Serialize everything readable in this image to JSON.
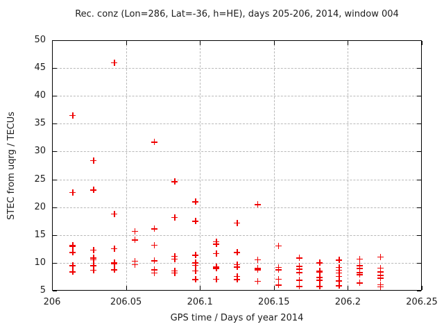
{
  "chart_data": {
    "type": "scatter",
    "title": "Rec. conz (Lon=286, Lat=-36, h=HE), days 205-206, 2014, window 004",
    "xlabel": "GPS time / Days of year 2014",
    "ylabel": "STEC from uqrg / TECUs",
    "xlim": [
      206,
      206.25
    ],
    "ylim": [
      5,
      50
    ],
    "x_ticks": [
      206,
      206.05,
      206.1,
      206.15,
      206.2,
      206.25
    ],
    "x_tick_labels": [
      "206",
      "206.05",
      "206.1",
      "206.15",
      "206.2",
      "206.25"
    ],
    "y_ticks": [
      5,
      10,
      15,
      20,
      25,
      30,
      35,
      40,
      45,
      50
    ],
    "y_tick_labels": [
      "5",
      "10",
      "15",
      "20",
      "25",
      "30",
      "35",
      "40",
      "45",
      "50"
    ],
    "grid": true,
    "legend": "none",
    "marker": "plus",
    "marker_color": "#ef0000",
    "grid_color": "#b8b8b8",
    "axis_color": "#000000",
    "text_color": "#1c1c1c",
    "background": "#ffffff",
    "points": [
      [
        206.014,
        36.5
      ],
      [
        206.014,
        22.7
      ],
      [
        206.014,
        13.2
      ],
      [
        206.014,
        13.0
      ],
      [
        206.014,
        11.9
      ],
      [
        206.014,
        9.5
      ],
      [
        206.014,
        8.4
      ],
      [
        206.028,
        28.4
      ],
      [
        206.028,
        23.1
      ],
      [
        206.028,
        12.3
      ],
      [
        206.028,
        10.9
      ],
      [
        206.028,
        10.6
      ],
      [
        206.028,
        9.5
      ],
      [
        206.028,
        8.7
      ],
      [
        206.042,
        46.0
      ],
      [
        206.042,
        18.8
      ],
      [
        206.042,
        12.6
      ],
      [
        206.042,
        10.1
      ],
      [
        206.042,
        9.9
      ],
      [
        206.042,
        8.8
      ],
      [
        206.056,
        15.7
      ],
      [
        206.056,
        14.1
      ],
      [
        206.056,
        10.3
      ],
      [
        206.056,
        9.7
      ],
      [
        206.069,
        31.7
      ],
      [
        206.069,
        16.1
      ],
      [
        206.069,
        13.2
      ],
      [
        206.069,
        10.4
      ],
      [
        206.069,
        8.8
      ],
      [
        206.069,
        8.2
      ],
      [
        206.083,
        24.6
      ],
      [
        206.083,
        18.2
      ],
      [
        206.083,
        11.2
      ],
      [
        206.083,
        10.7
      ],
      [
        206.083,
        8.6
      ],
      [
        206.083,
        8.2
      ],
      [
        206.097,
        21.0
      ],
      [
        206.097,
        17.5
      ],
      [
        206.097,
        11.4
      ],
      [
        206.097,
        10.0
      ],
      [
        206.097,
        9.6
      ],
      [
        206.097,
        8.6
      ],
      [
        206.097,
        7.0
      ],
      [
        206.111,
        13.8
      ],
      [
        206.111,
        13.4
      ],
      [
        206.111,
        11.7
      ],
      [
        206.111,
        9.3
      ],
      [
        206.111,
        9.0
      ],
      [
        206.111,
        7.1
      ],
      [
        206.125,
        17.2
      ],
      [
        206.125,
        11.9
      ],
      [
        206.125,
        9.7
      ],
      [
        206.125,
        9.3
      ],
      [
        206.125,
        7.6
      ],
      [
        206.125,
        7.0
      ],
      [
        206.139,
        20.5
      ],
      [
        206.139,
        10.6
      ],
      [
        206.139,
        9.0
      ],
      [
        206.139,
        8.8
      ],
      [
        206.139,
        6.7
      ],
      [
        206.153,
        13.1
      ],
      [
        206.153,
        9.2
      ],
      [
        206.153,
        8.8
      ],
      [
        206.153,
        7.1
      ],
      [
        206.153,
        6.0
      ],
      [
        206.167,
        10.9
      ],
      [
        206.167,
        9.4
      ],
      [
        206.167,
        8.9
      ],
      [
        206.167,
        8.3
      ],
      [
        206.167,
        6.9
      ],
      [
        206.167,
        5.8
      ],
      [
        206.181,
        10.0
      ],
      [
        206.181,
        8.6
      ],
      [
        206.181,
        8.4
      ],
      [
        206.181,
        7.4
      ],
      [
        206.181,
        6.9
      ],
      [
        206.181,
        5.8
      ],
      [
        206.194,
        10.5
      ],
      [
        206.194,
        9.2
      ],
      [
        206.194,
        8.7
      ],
      [
        206.194,
        8.2
      ],
      [
        206.194,
        7.6
      ],
      [
        206.194,
        6.8
      ],
      [
        206.194,
        5.9
      ],
      [
        206.208,
        10.7
      ],
      [
        206.208,
        9.5
      ],
      [
        206.208,
        9.0
      ],
      [
        206.208,
        8.3
      ],
      [
        206.208,
        7.9
      ],
      [
        206.208,
        6.4
      ],
      [
        206.222,
        11.1
      ],
      [
        206.222,
        9.1
      ],
      [
        206.222,
        8.4
      ],
      [
        206.222,
        7.8
      ],
      [
        206.222,
        7.3
      ],
      [
        206.222,
        6.1
      ],
      [
        206.222,
        5.7
      ]
    ]
  }
}
